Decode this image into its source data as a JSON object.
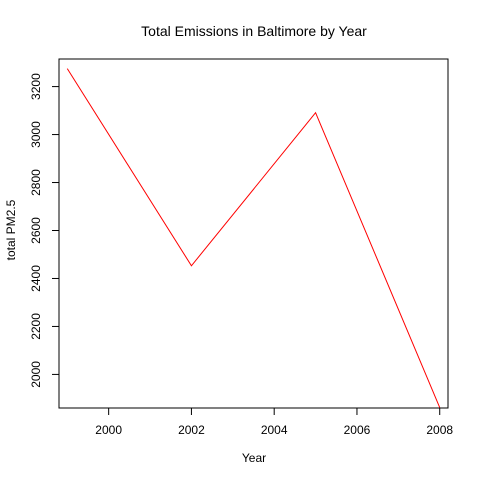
{
  "chart_data": {
    "type": "line",
    "title": "Total Emissions in Baltimore by Year",
    "xlabel": "Year",
    "ylabel": "total PM2.5",
    "xlim": [
      1998.8,
      2008.2
    ],
    "ylim": [
      1860,
      3315
    ],
    "xticks": [
      2000,
      2002,
      2004,
      2006,
      2008
    ],
    "yticks": [
      2000,
      2200,
      2400,
      2600,
      2800,
      3000,
      3200
    ],
    "series": [
      {
        "color": "#ff0000",
        "x": [
          1999,
          2002,
          2005,
          2008
        ],
        "y": [
          3275,
          2453,
          3091,
          1862
        ]
      }
    ],
    "grid": false,
    "legend": "none"
  }
}
